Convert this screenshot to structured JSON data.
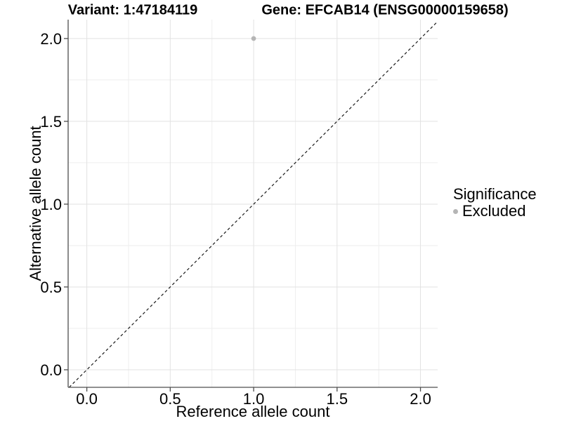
{
  "titles": {
    "variant": "Variant: 1:47184119",
    "gene": "Gene: EFCAB14 (ENSG00000159658)"
  },
  "chart_data": {
    "type": "scatter",
    "xlabel": "Reference allele count",
    "ylabel": "Alternative allele count",
    "xlim": [
      -0.112,
      2.103
    ],
    "ylim": [
      -0.106,
      2.114
    ],
    "x_major_ticks": [
      0,
      0.5,
      1,
      1.5,
      2
    ],
    "x_tick_labels": [
      "0.0",
      "0.5",
      "1.0",
      "1.5",
      "2.0"
    ],
    "x_minor_ticks": [
      0.25,
      0.75,
      1.25,
      1.75
    ],
    "y_major_ticks": [
      0,
      0.5,
      1,
      1.5,
      2
    ],
    "y_tick_labels": [
      "0.0",
      "0.5",
      "1.0",
      "1.5",
      "2.0"
    ],
    "y_minor_ticks": [
      0.25,
      0.75,
      1.25,
      1.75
    ],
    "grid": true,
    "legend_position": "right",
    "points": [
      {
        "x": 1.0,
        "y": 2.0,
        "series": "Excluded"
      }
    ],
    "identity_line": {
      "slope": 1,
      "intercept": 0,
      "style": "dashed"
    },
    "colors": {
      "point": "#b5b5b5",
      "grid_major": "#e2e2e2",
      "grid_minor": "#eeeeee",
      "axis": "#4d4d4d",
      "identity_line": "#1a1a1a",
      "background": "#ffffff"
    }
  },
  "legend": {
    "title": "Significance",
    "items": [
      {
        "label": "Excluded",
        "color": "#b5b5b5",
        "marker": "circle"
      }
    ]
  }
}
